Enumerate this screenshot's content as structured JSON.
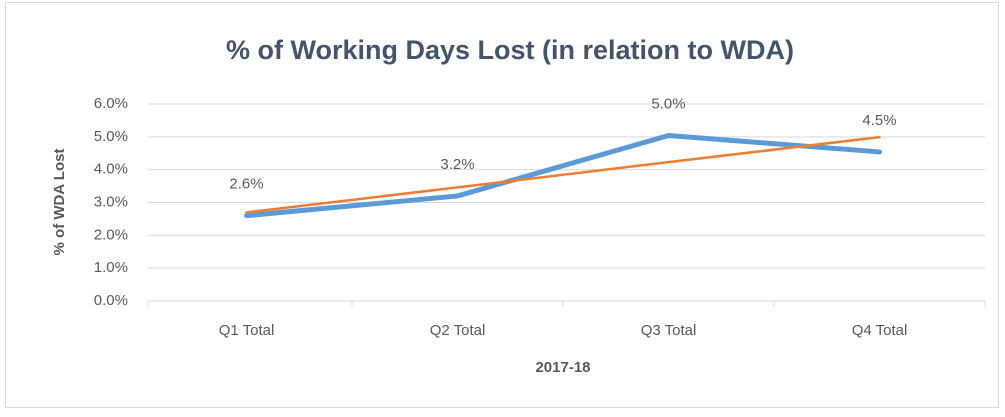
{
  "chart_data": {
    "type": "line",
    "title": "% of Working Days Lost (in relation to WDA)",
    "x_label": "2017-18",
    "y_label": "% of WDA Lost",
    "categories": [
      "Q1 Total",
      "Q2 Total",
      "Q3 Total",
      "Q4 Total"
    ],
    "series": [
      {
        "color": "#5b9bd5",
        "values": [
          2.6,
          3.2,
          5.04,
          4.54
        ],
        "value_labels": [
          "2.6%",
          "3.2%",
          "5.0%",
          "4.5%"
        ]
      },
      {
        "color": "#ed7d31",
        "values": [
          2.7,
          3.46,
          4.23,
          4.99
        ]
      }
    ],
    "ylim": [
      0,
      6
    ],
    "yticks": [
      {
        "value": 0,
        "label": "0.0%"
      },
      {
        "value": 1,
        "label": "1.0%"
      },
      {
        "value": 2,
        "label": "2.0%"
      },
      {
        "value": 3,
        "label": "3.0%"
      },
      {
        "value": 4,
        "label": "4.0%"
      },
      {
        "value": 5,
        "label": "5.0%"
      },
      {
        "value": 6,
        "label": "6.0%"
      }
    ],
    "grid": true
  }
}
